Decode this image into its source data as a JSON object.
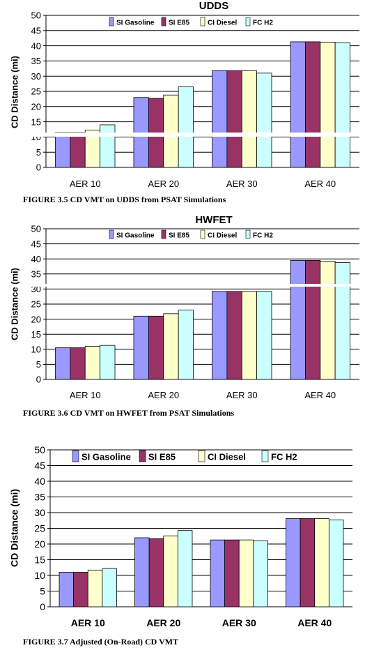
{
  "colors": {
    "si_gasoline": "#9999ff",
    "si_e85": "#993366",
    "ci_diesel": "#ffffcc",
    "fc_h2": "#ccffff",
    "gridline": "#000000"
  },
  "chart_data": [
    {
      "type": "bar",
      "title": "UDDS",
      "ylabel": "CD Distance  (mi)",
      "xlabel": "",
      "ylim": [
        0,
        50
      ],
      "yticks": [
        0,
        5,
        10,
        15,
        20,
        25,
        30,
        35,
        40,
        45,
        50
      ],
      "grid": true,
      "legend_position": "top-right",
      "categories": [
        "AER 10",
        "AER 20",
        "AER 30",
        "AER 40"
      ],
      "series": [
        {
          "name": "SI Gasoline",
          "color_key": "si_gasoline",
          "values": [
            11.5,
            23.0,
            31.8,
            41.3
          ]
        },
        {
          "name": "SI E85",
          "color_key": "si_e85",
          "values": [
            11.5,
            22.7,
            31.8,
            41.3
          ]
        },
        {
          "name": "CI Diesel",
          "color_key": "ci_diesel",
          "values": [
            12.3,
            23.8,
            31.8,
            41.2
          ]
        },
        {
          "name": "FC H2",
          "color_key": "fc_h2",
          "values": [
            14.0,
            26.5,
            31.0,
            41.0
          ]
        }
      ],
      "caption": "FIGURE 3.5  CD VMT on UDDS from PSAT Simulations"
    },
    {
      "type": "bar",
      "title": "HWFET",
      "ylabel": "CD Distance  (mi)",
      "xlabel": "",
      "ylim": [
        0,
        50
      ],
      "yticks": [
        0,
        5,
        10,
        15,
        20,
        25,
        30,
        35,
        40,
        45,
        50
      ],
      "grid": true,
      "legend_position": "top-right",
      "categories": [
        "AER 10",
        "AER 20",
        "AER 30",
        "AER 40"
      ],
      "series": [
        {
          "name": "SI Gasoline",
          "color_key": "si_gasoline",
          "values": [
            10.5,
            21.0,
            29.2,
            39.5
          ]
        },
        {
          "name": "SI E85",
          "color_key": "si_e85",
          "values": [
            10.5,
            21.0,
            29.2,
            39.5
          ]
        },
        {
          "name": "CI Diesel",
          "color_key": "ci_diesel",
          "values": [
            11.0,
            21.8,
            29.2,
            39.2
          ]
        },
        {
          "name": "FC H2",
          "color_key": "fc_h2",
          "values": [
            11.3,
            23.0,
            29.2,
            38.8
          ]
        }
      ],
      "caption": "FIGURE 3.6  CD VMT on HWFET from PSAT Simulations"
    },
    {
      "type": "bar",
      "title": "",
      "ylabel": "CD Distance (mi)",
      "xlabel": "",
      "ylim": [
        0,
        50
      ],
      "yticks": [
        0,
        5,
        10,
        15,
        20,
        25,
        30,
        35,
        40,
        45,
        50
      ],
      "grid": true,
      "legend_position": "top",
      "categories": [
        "AER 10",
        "AER 20",
        "AER 30",
        "AER 40"
      ],
      "series": [
        {
          "name": "SI Gasoline",
          "color_key": "si_gasoline",
          "values": [
            11.0,
            22.0,
            21.3,
            28.1
          ]
        },
        {
          "name": "SI E85",
          "color_key": "si_e85",
          "values": [
            11.0,
            21.7,
            21.3,
            28.1
          ]
        },
        {
          "name": "CI Diesel",
          "color_key": "ci_diesel",
          "values": [
            11.7,
            22.6,
            21.3,
            28.1
          ]
        },
        {
          "name": "FC H2",
          "color_key": "fc_h2",
          "values": [
            12.2,
            24.3,
            21.0,
            27.7
          ]
        }
      ],
      "caption": "FIGURE 3.7  Adjusted (On-Road) CD VMT"
    }
  ]
}
